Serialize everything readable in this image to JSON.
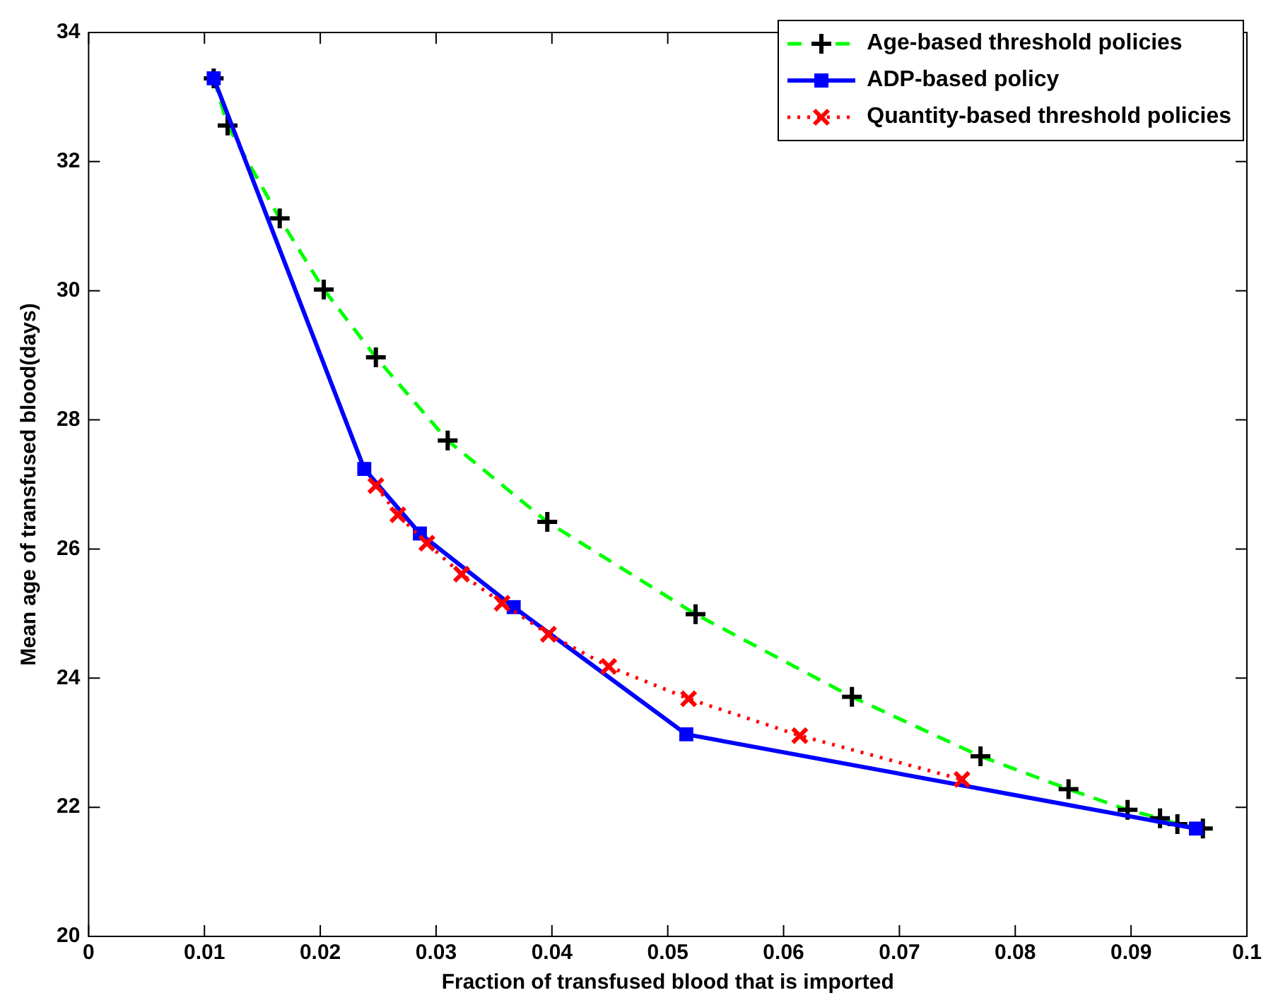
{
  "chart_data": {
    "type": "line",
    "xlabel": "Fraction of transfused blood that is imported",
    "ylabel": "Mean age of transfused blood(days)",
    "xlim": [
      0,
      0.1
    ],
    "xticks": [
      0,
      0.01,
      0.02,
      0.03,
      0.04,
      0.05,
      0.06,
      0.07,
      0.08,
      0.09,
      0.1
    ],
    "ylim": [
      20,
      34
    ],
    "yticks": [
      20,
      22,
      24,
      26,
      28,
      30,
      32,
      34
    ],
    "grid": false,
    "legend": "top right",
    "series": [
      {
        "name": "Age-based threshold policies",
        "color": "#00ff00",
        "colors": [
          "#000000",
          "#000000",
          "#000000",
          "#000000",
          "#000000",
          "#000000",
          "#000000",
          "#000000",
          "#000000",
          "#000000",
          "#000000",
          "#000000",
          "#000000",
          "#000000",
          "#000000"
        ],
        "marker": "cross",
        "line_style": "dashed",
        "x": [
          0.0108,
          0.012,
          0.0165,
          0.0203,
          0.0248,
          0.031,
          0.0396,
          0.0524,
          0.0659,
          0.077,
          0.0846,
          0.0897,
          0.0925,
          0.094,
          0.0962
        ],
        "values": [
          33.29,
          32.56,
          31.12,
          30.02,
          28.97,
          27.68,
          26.42,
          24.99,
          23.71,
          22.79,
          22.28,
          21.96,
          21.83,
          21.74,
          21.67
        ]
      },
      {
        "name": "ADP-based policy",
        "color": "#0000ff",
        "marker": "square",
        "line_style": "solid",
        "x": [
          0.0108,
          0.0238,
          0.0286,
          0.0367,
          0.0516,
          0.0956
        ],
        "values": [
          33.29,
          27.24,
          26.24,
          25.1,
          23.13,
          21.67
        ]
      },
      {
        "name": "Quantity-based threshold policies",
        "color": "#ff0000",
        "marker": "x",
        "line_style": "dotted",
        "x": [
          0.0248,
          0.0267,
          0.0292,
          0.0322,
          0.0357,
          0.0397,
          0.0449,
          0.0518,
          0.0614,
          0.0754
        ],
        "values": [
          26.98,
          26.53,
          26.09,
          25.61,
          25.16,
          24.68,
          24.18,
          23.68,
          23.11,
          22.43
        ]
      }
    ]
  }
}
